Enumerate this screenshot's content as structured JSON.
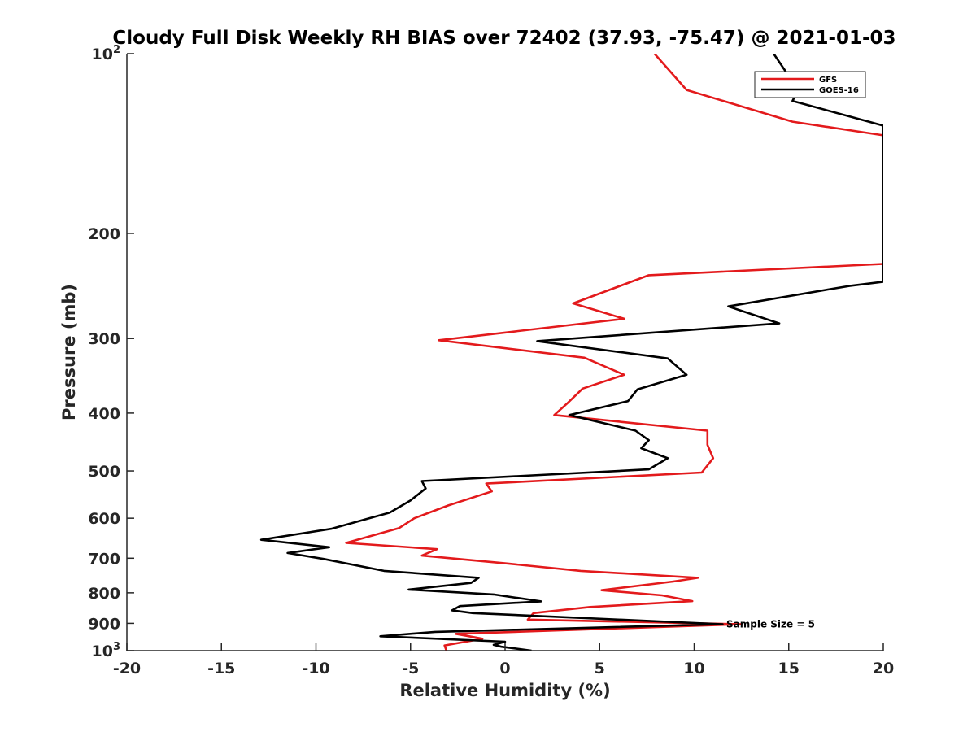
{
  "chart_data": {
    "type": "line",
    "title": "Cloudy Full Disk Weekly RH BIAS over 72402 (37.93, -75.47) @ 2021-01-03",
    "xlabel": "Relative Humidity (%)",
    "ylabel": "Pressure (mb)",
    "xlim": [
      -20,
      20
    ],
    "ylim": [
      100,
      1000
    ],
    "yscale": "log",
    "y_reversed": true,
    "grid": false,
    "x_ticks": [
      -20,
      -15,
      -10,
      -5,
      0,
      5,
      10,
      15,
      20
    ],
    "x_tick_labels": [
      "-20",
      "-15",
      "-10",
      "-5",
      "0",
      "5",
      "10",
      "15",
      "20"
    ],
    "y_ticks": [
      100,
      200,
      300,
      400,
      500,
      600,
      700,
      800,
      900,
      1000
    ],
    "y_tick_labels": [
      {
        "base": "10",
        "exp": "2"
      },
      {
        "base": "200",
        "exp": ""
      },
      {
        "base": "300",
        "exp": ""
      },
      {
        "base": "400",
        "exp": ""
      },
      {
        "base": "500",
        "exp": ""
      },
      {
        "base": "600",
        "exp": ""
      },
      {
        "base": "700",
        "exp": ""
      },
      {
        "base": "800",
        "exp": ""
      },
      {
        "base": "900",
        "exp": ""
      },
      {
        "base": "10",
        "exp": "3"
      }
    ],
    "legend": {
      "placement": "top-right"
    },
    "annotation": {
      "text": "Sample Size = 5",
      "x": 11.7,
      "y": 900
    },
    "series": [
      {
        "name": "GFS",
        "color": "#e31a1c",
        "points": [
          [
            7.9,
            100
          ],
          [
            9.6,
            115
          ],
          [
            15.2,
            130
          ],
          [
            20.0,
            137
          ],
          [
            20.0,
            225
          ],
          [
            7.6,
            235
          ],
          [
            3.6,
            262
          ],
          [
            6.3,
            278
          ],
          [
            -3.5,
            302
          ],
          [
            4.2,
            323
          ],
          [
            6.3,
            345
          ],
          [
            4.1,
            364
          ],
          [
            3.3,
            385
          ],
          [
            2.6,
            403
          ],
          [
            10.7,
            428
          ],
          [
            10.7,
            452
          ],
          [
            11.0,
            476
          ],
          [
            10.4,
            503
          ],
          [
            -1.0,
            525
          ],
          [
            -0.7,
            541
          ],
          [
            -3.0,
            571
          ],
          [
            -4.8,
            600
          ],
          [
            -5.6,
            623
          ],
          [
            -8.4,
            660
          ],
          [
            -3.6,
            676
          ],
          [
            -4.4,
            693
          ],
          [
            0.0,
            714
          ],
          [
            4.0,
            735
          ],
          [
            10.2,
            755
          ],
          [
            8.9,
            766
          ],
          [
            5.1,
            792
          ],
          [
            8.3,
            808
          ],
          [
            9.9,
            826
          ],
          [
            4.5,
            845
          ],
          [
            1.5,
            865
          ],
          [
            1.2,
            887
          ],
          [
            12.5,
            903
          ],
          [
            -2.6,
            937
          ],
          [
            -1.2,
            955
          ],
          [
            -3.2,
            980
          ],
          [
            -3.1,
            1000
          ]
        ]
      },
      {
        "name": "GOES-16",
        "color": "#000000",
        "points": [
          [
            14.2,
            100
          ],
          [
            15.5,
            115
          ],
          [
            15.2,
            120
          ],
          [
            20.0,
            132
          ],
          [
            20.0,
            241
          ],
          [
            18.2,
            245
          ],
          [
            11.8,
            265
          ],
          [
            14.5,
            283
          ],
          [
            1.7,
            303
          ],
          [
            8.6,
            324
          ],
          [
            9.6,
            345
          ],
          [
            7.0,
            365
          ],
          [
            6.5,
            382
          ],
          [
            3.4,
            403
          ],
          [
            6.9,
            428
          ],
          [
            7.6,
            444
          ],
          [
            7.2,
            458
          ],
          [
            8.6,
            476
          ],
          [
            7.6,
            497
          ],
          [
            -4.4,
            520
          ],
          [
            -4.2,
            535
          ],
          [
            -5.0,
            560
          ],
          [
            -6.1,
            587
          ],
          [
            -9.2,
            625
          ],
          [
            -12.9,
            652
          ],
          [
            -9.3,
            671
          ],
          [
            -11.5,
            686
          ],
          [
            -9.6,
            702
          ],
          [
            -6.4,
            735
          ],
          [
            -1.4,
            755
          ],
          [
            -1.8,
            770
          ],
          [
            -5.1,
            790
          ],
          [
            -0.6,
            805
          ],
          [
            1.9,
            827
          ],
          [
            -2.4,
            842
          ],
          [
            -2.8,
            856
          ],
          [
            -1.7,
            865
          ],
          [
            11.5,
            903
          ],
          [
            -3.7,
            930
          ],
          [
            -4.8,
            936
          ],
          [
            -6.6,
            946
          ],
          [
            0.0,
            966
          ],
          [
            -0.6,
            978
          ],
          [
            -0.2,
            985
          ],
          [
            1.4,
            1000
          ]
        ]
      }
    ]
  }
}
